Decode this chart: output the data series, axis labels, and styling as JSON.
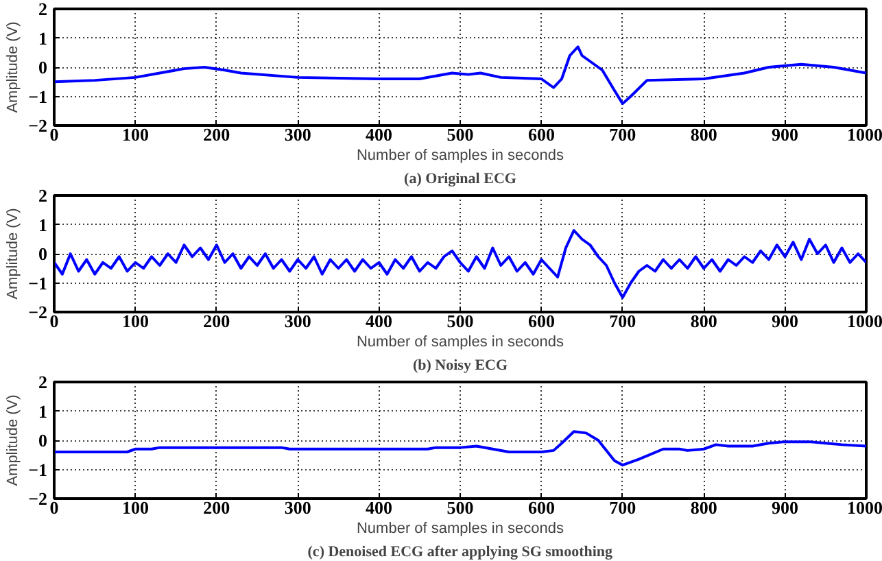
{
  "chart_data": [
    {
      "type": "line",
      "title": "(a) Original ECG",
      "xlabel": "Number of samples in seconds",
      "ylabel": "Amplitude (V)",
      "xlim": [
        0,
        1000
      ],
      "ylim": [
        -2,
        2
      ],
      "xticks": [
        0,
        100,
        200,
        300,
        400,
        500,
        600,
        700,
        800,
        900,
        1000
      ],
      "yticks": [
        -2,
        -1,
        0,
        1,
        2
      ],
      "grid": true,
      "line_style": "solid",
      "series": [
        {
          "color": "#0000ff",
          "x": [
            0,
            50,
            100,
            130,
            160,
            185,
            210,
            230,
            300,
            400,
            450,
            490,
            510,
            525,
            550,
            600,
            615,
            625,
            635,
            645,
            650,
            660,
            675,
            690,
            700,
            710,
            730,
            800,
            850,
            880,
            920,
            960,
            1000
          ],
          "values": [
            -0.5,
            -0.45,
            -0.35,
            -0.2,
            -0.05,
            0,
            -0.1,
            -0.2,
            -0.35,
            -0.4,
            -0.4,
            -0.2,
            -0.25,
            -0.2,
            -0.35,
            -0.4,
            -0.7,
            -0.4,
            0.4,
            0.7,
            0.4,
            0.2,
            -0.1,
            -0.8,
            -1.25,
            -1.0,
            -0.45,
            -0.4,
            -0.2,
            0,
            0.1,
            0,
            -0.2
          ]
        }
      ]
    },
    {
      "type": "line",
      "title": "(b) Noisy ECG",
      "xlabel": "Number of samples in seconds",
      "ylabel": "Amplitude (V)",
      "xlim": [
        0,
        1000
      ],
      "ylim": [
        -2,
        2
      ],
      "xticks": [
        0,
        100,
        200,
        300,
        400,
        500,
        600,
        700,
        800,
        900,
        1000
      ],
      "yticks": [
        -2,
        -1,
        0,
        1,
        2
      ],
      "grid": true,
      "line_style": "solid",
      "series": [
        {
          "color": "#0000ff",
          "x": [
            0,
            10,
            20,
            30,
            40,
            50,
            60,
            70,
            80,
            90,
            100,
            110,
            120,
            130,
            140,
            150,
            160,
            170,
            180,
            190,
            200,
            210,
            220,
            230,
            240,
            250,
            260,
            270,
            280,
            290,
            300,
            310,
            320,
            330,
            340,
            350,
            360,
            370,
            380,
            390,
            400,
            410,
            420,
            430,
            440,
            450,
            460,
            470,
            480,
            490,
            500,
            510,
            520,
            530,
            540,
            550,
            560,
            570,
            580,
            590,
            600,
            610,
            620,
            630,
            640,
            650,
            660,
            670,
            680,
            690,
            700,
            710,
            720,
            730,
            740,
            750,
            760,
            770,
            780,
            790,
            800,
            810,
            820,
            830,
            840,
            850,
            860,
            870,
            880,
            890,
            900,
            910,
            920,
            930,
            940,
            950,
            960,
            970,
            980,
            990,
            1000
          ],
          "values": [
            -0.3,
            -0.7,
            0.0,
            -0.6,
            -0.2,
            -0.7,
            -0.3,
            -0.5,
            -0.1,
            -0.6,
            -0.3,
            -0.5,
            -0.1,
            -0.4,
            0.0,
            -0.3,
            0.3,
            -0.1,
            0.2,
            -0.2,
            0.3,
            -0.3,
            0.0,
            -0.5,
            -0.1,
            -0.4,
            0.0,
            -0.5,
            -0.2,
            -0.6,
            -0.2,
            -0.5,
            -0.1,
            -0.7,
            -0.2,
            -0.5,
            -0.2,
            -0.6,
            -0.2,
            -0.5,
            -0.3,
            -0.7,
            -0.2,
            -0.5,
            -0.1,
            -0.6,
            -0.3,
            -0.5,
            -0.1,
            0.1,
            -0.3,
            -0.6,
            -0.1,
            -0.5,
            0.2,
            -0.4,
            -0.1,
            -0.6,
            -0.3,
            -0.7,
            -0.2,
            -0.5,
            -0.8,
            0.2,
            0.8,
            0.5,
            0.3,
            -0.1,
            -0.4,
            -1.0,
            -1.5,
            -1.0,
            -0.6,
            -0.4,
            -0.6,
            -0.2,
            -0.5,
            -0.2,
            -0.5,
            -0.1,
            -0.5,
            -0.2,
            -0.6,
            -0.2,
            -0.4,
            -0.1,
            -0.3,
            0.1,
            -0.2,
            0.3,
            -0.1,
            0.4,
            -0.2,
            0.5,
            0.0,
            0.3,
            -0.3,
            0.2,
            -0.3,
            0.0,
            -0.3
          ]
        }
      ]
    },
    {
      "type": "line",
      "title": "(c) Denoised ECG after applying SG smoothing",
      "xlabel": "Number of samples in seconds",
      "ylabel": "Amplitude (V)",
      "xlim": [
        0,
        1000
      ],
      "ylim": [
        -2,
        2
      ],
      "xticks": [
        0,
        100,
        200,
        300,
        400,
        500,
        600,
        700,
        800,
        900,
        1000
      ],
      "yticks": [
        -2,
        -1,
        0,
        1,
        2
      ],
      "grid": true,
      "line_style": "solid",
      "series": [
        {
          "color": "#0000ff",
          "x": [
            0,
            90,
            100,
            120,
            130,
            280,
            290,
            460,
            470,
            500,
            520,
            540,
            560,
            600,
            615,
            625,
            640,
            655,
            670,
            690,
            700,
            720,
            750,
            770,
            780,
            800,
            815,
            830,
            860,
            880,
            900,
            930,
            950,
            970,
            1000
          ],
          "values": [
            -0.4,
            -0.4,
            -0.3,
            -0.3,
            -0.25,
            -0.25,
            -0.3,
            -0.3,
            -0.25,
            -0.25,
            -0.2,
            -0.3,
            -0.4,
            -0.4,
            -0.35,
            -0.1,
            0.3,
            0.25,
            0,
            -0.7,
            -0.85,
            -0.65,
            -0.3,
            -0.3,
            -0.35,
            -0.3,
            -0.15,
            -0.2,
            -0.2,
            -0.1,
            -0.05,
            -0.05,
            -0.1,
            -0.15,
            -0.2
          ]
        }
      ]
    }
  ]
}
